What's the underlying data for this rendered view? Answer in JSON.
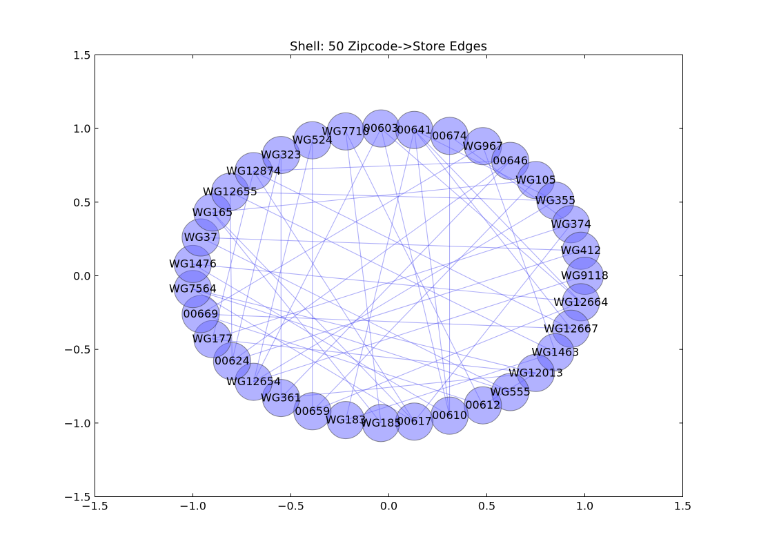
{
  "chart_data": {
    "type": "network",
    "layout": "shell",
    "title": "Shell: 50 Zipcode->Store Edges",
    "xlim": [
      -1.5,
      1.5
    ],
    "ylim": [
      -1.5,
      1.5
    ],
    "xticks": [
      -1.5,
      -1.0,
      -0.5,
      0.0,
      0.5,
      1.0,
      1.5
    ],
    "yticks": [
      -1.5,
      -1.0,
      -0.5,
      0.0,
      0.5,
      1.0,
      1.5
    ],
    "xtick_labels": [
      "−1.5",
      "−1.0",
      "−0.5",
      "0.0",
      "0.5",
      "1.0",
      "1.5"
    ],
    "ytick_labels": [
      "−1.5",
      "−1.0",
      "−0.5",
      "0.0",
      "0.5",
      "1.0",
      "1.5"
    ],
    "grid": false,
    "node_color": "#6666ff",
    "node_edge_color": "#333333",
    "edge_color": "#3333ee",
    "nodes": [
      {
        "label": "00603",
        "x": -0.04,
        "y": 1.0
      },
      {
        "label": "00641",
        "x": 0.13,
        "y": 0.99
      },
      {
        "label": "00674",
        "x": 0.31,
        "y": 0.95
      },
      {
        "label": "WG967",
        "x": 0.48,
        "y": 0.88
      },
      {
        "label": "00646",
        "x": 0.62,
        "y": 0.78
      },
      {
        "label": "WG105",
        "x": 0.75,
        "y": 0.65
      },
      {
        "label": "WG355",
        "x": 0.85,
        "y": 0.51
      },
      {
        "label": "WG374",
        "x": 0.93,
        "y": 0.35
      },
      {
        "label": "WG412",
        "x": 0.98,
        "y": 0.17
      },
      {
        "label": "WG9118",
        "x": 1.0,
        "y": 0.0
      },
      {
        "label": "WG12664",
        "x": 0.98,
        "y": -0.18
      },
      {
        "label": "WG12667",
        "x": 0.93,
        "y": -0.36
      },
      {
        "label": "WG1463",
        "x": 0.85,
        "y": -0.52
      },
      {
        "label": "WG12013",
        "x": 0.75,
        "y": -0.66
      },
      {
        "label": "WG555",
        "x": 0.62,
        "y": -0.79
      },
      {
        "label": "00612",
        "x": 0.48,
        "y": -0.88
      },
      {
        "label": "00610",
        "x": 0.31,
        "y": -0.95
      },
      {
        "label": "00617",
        "x": 0.13,
        "y": -0.99
      },
      {
        "label": "WG185",
        "x": -0.04,
        "y": -1.0
      },
      {
        "label": "WG183",
        "x": -0.22,
        "y": -0.98
      },
      {
        "label": "00659",
        "x": -0.39,
        "y": -0.92
      },
      {
        "label": "WG361",
        "x": -0.55,
        "y": -0.83
      },
      {
        "label": "WG12654",
        "x": -0.69,
        "y": -0.72
      },
      {
        "label": "00624",
        "x": -0.8,
        "y": -0.58
      },
      {
        "label": "WG177",
        "x": -0.9,
        "y": -0.43
      },
      {
        "label": "00669",
        "x": -0.96,
        "y": -0.26
      },
      {
        "label": "WG7564",
        "x": -1.0,
        "y": -0.09
      },
      {
        "label": "WG1476",
        "x": -1.0,
        "y": 0.08
      },
      {
        "label": "WG37",
        "x": -0.96,
        "y": 0.26
      },
      {
        "label": "WG165",
        "x": -0.9,
        "y": 0.43
      },
      {
        "label": "WG12655",
        "x": -0.81,
        "y": 0.57
      },
      {
        "label": "WG12874",
        "x": -0.69,
        "y": 0.71
      },
      {
        "label": "WG323",
        "x": -0.55,
        "y": 0.82
      },
      {
        "label": "WG524",
        "x": -0.39,
        "y": 0.92
      },
      {
        "label": "WG7710",
        "x": -0.22,
        "y": 0.98
      }
    ],
    "edges": [
      [
        "WG7710",
        "00612"
      ],
      [
        "WG7710",
        "WG185"
      ],
      [
        "WG524",
        "00659"
      ],
      [
        "00641",
        "WG12667"
      ],
      [
        "00641",
        "WG12664"
      ],
      [
        "00641",
        "WG183"
      ],
      [
        "00641",
        "00610"
      ],
      [
        "00641",
        "WG355"
      ],
      [
        "WG967",
        "00669"
      ],
      [
        "WG967",
        "WG1463"
      ],
      [
        "00674",
        "WG374"
      ],
      [
        "00674",
        "00610"
      ],
      [
        "00646",
        "00624"
      ],
      [
        "00646",
        "WG361"
      ],
      [
        "00646",
        "WG12874"
      ],
      [
        "WG105",
        "WG165"
      ],
      [
        "WG105",
        "00659"
      ],
      [
        "WG355",
        "WG12655"
      ],
      [
        "WG355",
        "WG12654"
      ],
      [
        "WG374",
        "WG177"
      ],
      [
        "WG374",
        "00617"
      ],
      [
        "WG412",
        "00624"
      ],
      [
        "WG12664",
        "WG1476"
      ],
      [
        "WG12667",
        "WG12874"
      ],
      [
        "WG12013",
        "WG7564"
      ],
      [
        "WG12013",
        "WG361"
      ],
      [
        "WG555",
        "WG37"
      ],
      [
        "00603",
        "00610"
      ],
      [
        "00603",
        "WG12654"
      ],
      [
        "00612",
        "WG12013"
      ],
      [
        "00612",
        "00669"
      ],
      [
        "00617",
        "WG12874"
      ],
      [
        "00617",
        "WG7564"
      ],
      [
        "WG185",
        "WG165"
      ],
      [
        "WG183",
        "WG1463"
      ],
      [
        "00659",
        "WG12664"
      ],
      [
        "WG361",
        "WG323"
      ],
      [
        "WG12654",
        "WG9118"
      ],
      [
        "00624",
        "WG12655"
      ],
      [
        "WG177",
        "WG12013"
      ],
      [
        "WG177",
        "WG12874"
      ],
      [
        "00669",
        "WG12667"
      ],
      [
        "WG7564",
        "WG555"
      ],
      [
        "WG1476",
        "00610"
      ],
      [
        "WG37",
        "WG412"
      ],
      [
        "WG165",
        "00617"
      ],
      [
        "WG12655",
        "WG1463"
      ],
      [
        "WG323",
        "00624"
      ],
      [
        "WG524",
        "WG12654"
      ],
      [
        "00603",
        "WG12664"
      ]
    ]
  }
}
